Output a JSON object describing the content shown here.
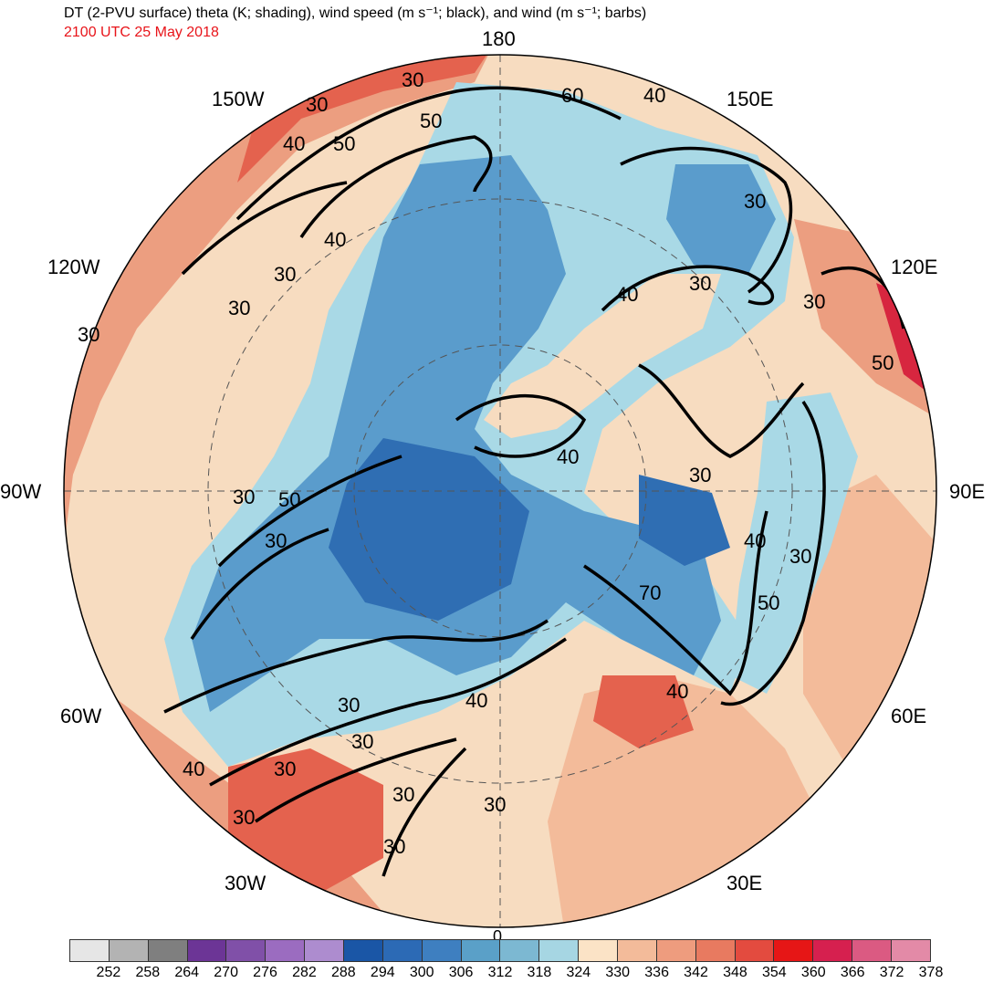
{
  "header": {
    "title": "DT (2-PVU surface) theta (K; shading), wind speed (m s⁻¹; black), and wind (m s⁻¹; barbs)",
    "valid_time": "2100 UTC 25 May 2018"
  },
  "map": {
    "projection": "north polar stereographic",
    "longitude_labels": {
      "top": "180",
      "bottom": "0",
      "left": "90W",
      "right": "90E",
      "upper_left_1": "150W",
      "upper_left_2": "120W",
      "upper_right_1": "150E",
      "upper_right_2": "120E",
      "lower_left_1": "60W",
      "lower_left_2": "30W",
      "lower_right_1": "60E",
      "lower_right_2": "30E"
    },
    "contour_labels": [
      "30",
      "30",
      "40",
      "40",
      "50",
      "50",
      "60",
      "40",
      "30",
      "30",
      "40",
      "30",
      "30",
      "30",
      "50",
      "40",
      "30",
      "30",
      "50",
      "30",
      "40",
      "30",
      "30",
      "30",
      "40",
      "70",
      "40",
      "50",
      "30",
      "40",
      "30",
      "30",
      "30",
      "30",
      "30"
    ],
    "colors": {
      "cold_deep": "#2f6eb3",
      "cold_mid": "#5a9ccc",
      "cool": "#a9d9e6",
      "neutral": "#f7dcc0",
      "warm": "#ec9e80",
      "hot": "#e4624e",
      "very_hot": "#d7263f"
    }
  },
  "colorbar": {
    "ticks": [
      "252",
      "258",
      "264",
      "270",
      "276",
      "282",
      "288",
      "294",
      "300",
      "306",
      "312",
      "318",
      "324",
      "330",
      "336",
      "342",
      "348",
      "354",
      "360",
      "366",
      "372",
      "378"
    ],
    "colors": [
      "#e6e6e6",
      "#b3b3b3",
      "#7f7f7f",
      "#6c3596",
      "#8050a8",
      "#9b6cc0",
      "#ad8ccf",
      "#1a56a6",
      "#2c6ab5",
      "#3e7fc0",
      "#5aa0c8",
      "#7cb8d2",
      "#a6d6e3",
      "#fbe3c6",
      "#f3bb9a",
      "#ee9c7e",
      "#e87a60",
      "#e34b3f",
      "#e61616",
      "#d6204f",
      "#db5a82",
      "#e38aa7"
    ]
  }
}
